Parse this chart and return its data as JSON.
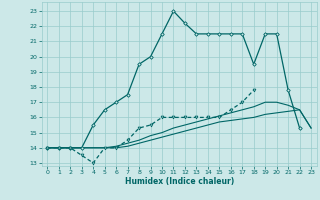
{
  "xlabel": "Humidex (Indice chaleur)",
  "bg_color": "#cce8e8",
  "grid_color": "#99cccc",
  "line_color": "#006666",
  "xlim": [
    -0.5,
    23.5
  ],
  "ylim": [
    12.8,
    23.6
  ],
  "yticks": [
    13,
    14,
    15,
    16,
    17,
    18,
    19,
    20,
    21,
    22,
    23
  ],
  "xticks": [
    0,
    1,
    2,
    3,
    4,
    5,
    6,
    7,
    8,
    9,
    10,
    11,
    12,
    13,
    14,
    15,
    16,
    17,
    18,
    19,
    20,
    21,
    22,
    23
  ],
  "series1_x": [
    0,
    1,
    2,
    3,
    4,
    5,
    6,
    7,
    8,
    9,
    10,
    11,
    12,
    13,
    14,
    15,
    16,
    17,
    18,
    19,
    20,
    21,
    22
  ],
  "series1_y": [
    14,
    14,
    14,
    14,
    15.5,
    16.5,
    17,
    17.5,
    19.5,
    20,
    21.5,
    23,
    22.2,
    21.5,
    21.5,
    21.5,
    21.5,
    21.5,
    19.5,
    21.5,
    21.5,
    17.8,
    15.3
  ],
  "series2_x": [
    0,
    1,
    2,
    3,
    4,
    5,
    6,
    7,
    8,
    9,
    10,
    11,
    12,
    13,
    14,
    15,
    16,
    17,
    18
  ],
  "series2_y": [
    14,
    14,
    14,
    13.5,
    13,
    14,
    14,
    14.5,
    15.3,
    15.5,
    16,
    16,
    16,
    16,
    16,
    16,
    16.5,
    17,
    17.8
  ],
  "series3_x": [
    0,
    1,
    2,
    3,
    4,
    5,
    6,
    7,
    8,
    9,
    10,
    11,
    12,
    13,
    14,
    15,
    16,
    17,
    18,
    19,
    20,
    21,
    22,
    23
  ],
  "series3_y": [
    14,
    14,
    14,
    14,
    14,
    14,
    14.1,
    14.3,
    14.5,
    14.8,
    15.0,
    15.3,
    15.5,
    15.7,
    15.9,
    16.1,
    16.3,
    16.5,
    16.7,
    17.0,
    17.0,
    16.8,
    16.5,
    15.3
  ],
  "series4_x": [
    0,
    1,
    2,
    3,
    4,
    5,
    6,
    7,
    8,
    9,
    10,
    11,
    12,
    13,
    14,
    15,
    16,
    17,
    18,
    19,
    20,
    21,
    22,
    23
  ],
  "series4_y": [
    14,
    14,
    14,
    14,
    14,
    14,
    14,
    14.1,
    14.3,
    14.5,
    14.7,
    14.9,
    15.1,
    15.3,
    15.5,
    15.7,
    15.8,
    15.9,
    16.0,
    16.2,
    16.3,
    16.4,
    16.5,
    15.3
  ]
}
